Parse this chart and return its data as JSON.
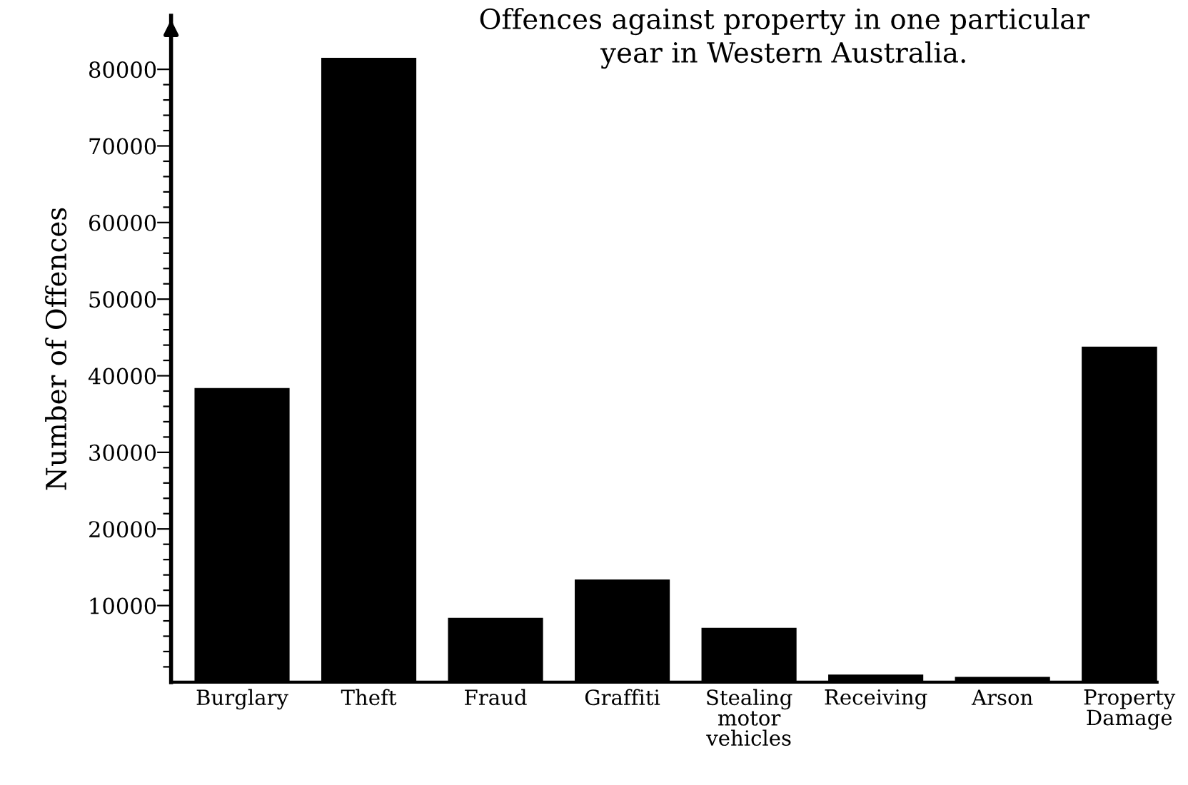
{
  "chart_data": {
    "type": "bar",
    "title": "Offences against property in one particular\nyear in Western Australia.",
    "ylabel": "Number of Offences",
    "categories": [
      "Burglary",
      "Theft",
      "Fraud",
      "Graffiti",
      "Stealing\nmotor\nvehicles",
      "Receiving",
      "Arson",
      "Property\nDamage"
    ],
    "values": [
      38400,
      81500,
      8400,
      13400,
      7100,
      1000,
      700,
      43800
    ],
    "color": "#000000",
    "ylim": [
      0,
      87000
    ],
    "yticks": [
      {
        "value": 2000,
        "label": null
      },
      {
        "value": 4000,
        "label": null
      },
      {
        "value": 6000,
        "label": null
      },
      {
        "value": 8000,
        "label": null
      },
      10000,
      {
        "value": 12000,
        "label": null
      },
      {
        "value": 14000,
        "label": null
      },
      {
        "value": 16000,
        "label": null
      },
      {
        "value": 18000,
        "label": null
      },
      20000,
      {
        "value": 22000,
        "label": null
      },
      {
        "value": 24000,
        "label": null
      },
      {
        "value": 26000,
        "label": null
      },
      {
        "value": 28000,
        "label": null
      },
      30000,
      {
        "value": 32000,
        "label": null
      },
      {
        "value": 34000,
        "label": null
      },
      {
        "value": 36000,
        "label": null
      },
      {
        "value": 38000,
        "label": null
      },
      40000,
      {
        "value": 42000,
        "label": null
      },
      {
        "value": 44000,
        "label": null
      },
      {
        "value": 46000,
        "label": null
      },
      {
        "value": 48000,
        "label": null
      },
      50000,
      {
        "value": 52000,
        "label": null
      },
      {
        "value": 54000,
        "label": null
      },
      {
        "value": 56000,
        "label": null
      },
      {
        "value": 58000,
        "label": null
      },
      60000,
      {
        "value": 62000,
        "label": null
      },
      {
        "value": 64000,
        "label": null
      },
      {
        "value": 66000,
        "label": null
      },
      {
        "value": 68000,
        "label": null
      },
      70000,
      {
        "value": 72000,
        "label": null
      },
      {
        "value": 74000,
        "label": null
      },
      {
        "value": 76000,
        "label": null
      },
      {
        "value": 78000,
        "label": null
      },
      80000
    ],
    "grid": false,
    "legend": false
  }
}
